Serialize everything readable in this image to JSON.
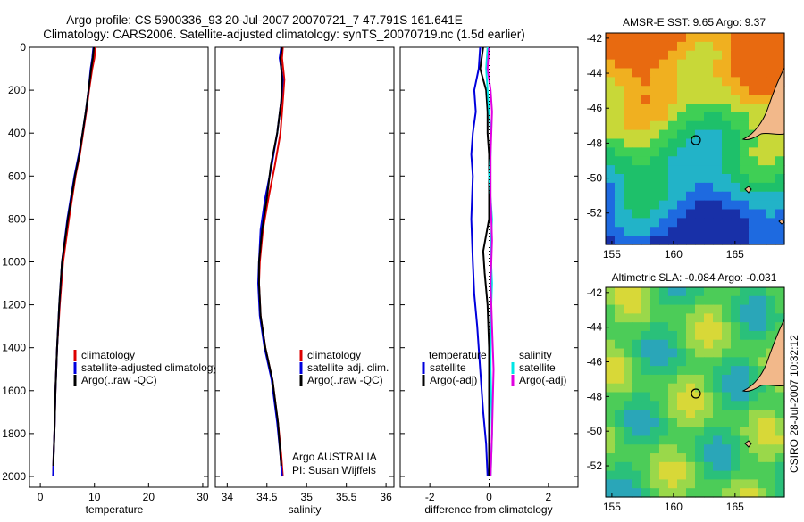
{
  "header": {
    "line1": "Argo profile: CS 5900336_93 20-Jul-2007 20070721_7 47.791S 161.641E",
    "line2": "Climatology: CARS2006. Satellite-adjusted climatology: synTS_20070719.nc (1.5d earlier)"
  },
  "side_stamp": "CSIRO 28-Jul-2007 10:32:12",
  "colors": {
    "red": "#dd0000",
    "blue": "#0000dd",
    "black": "#000000",
    "cyan": "#00e5e5",
    "magenta": "#e000e0"
  },
  "chart_data": [
    {
      "id": "temperature",
      "type": "line",
      "xlabel": "temperature",
      "ylabel": "",
      "xlim": [
        -2,
        31
      ],
      "ylim": [
        2050,
        0
      ],
      "xticks": [
        "0",
        "10",
        "20",
        "30"
      ],
      "xtick_values": [
        0,
        10,
        20,
        30
      ],
      "yticks": [
        "0",
        "200",
        "400",
        "600",
        "800",
        "1000",
        "1200",
        "1400",
        "1600",
        "1800",
        "2000"
      ],
      "ytick_values": [
        0,
        200,
        400,
        600,
        800,
        1000,
        1200,
        1400,
        1600,
        1800,
        2000
      ],
      "legend": [
        "climatology",
        "satellite-adjusted climatology",
        "Argo(..raw -QC)"
      ],
      "series": [
        {
          "name": "climatology",
          "color": "red",
          "x": [
            10.2,
            10.0,
            9.6,
            9.0,
            8.5,
            7.9,
            7.3,
            6.5,
            5.3,
            4.2,
            3.6,
            3.1,
            2.8,
            2.6,
            2.45,
            2.35
          ],
          "y": [
            0,
            50,
            100,
            200,
            300,
            400,
            500,
            600,
            800,
            1000,
            1200,
            1400,
            1600,
            1800,
            1900,
            2000
          ]
        },
        {
          "name": "satellite-adjusted climatology",
          "color": "blue",
          "x": [
            9.8,
            9.6,
            9.3,
            8.9,
            8.4,
            7.8,
            7.1,
            6.3,
            5.0,
            4.0,
            3.5,
            3.1,
            2.8,
            2.6,
            2.45,
            2.35
          ],
          "y": [
            0,
            50,
            100,
            200,
            300,
            400,
            500,
            600,
            800,
            1000,
            1200,
            1400,
            1600,
            1800,
            1900,
            2000
          ]
        },
        {
          "name": "Argo(..raw -QC)",
          "color": "black",
          "x": [
            9.9,
            9.7,
            9.4,
            8.9,
            8.4,
            7.8,
            7.2,
            6.4,
            5.1,
            4.0,
            3.5,
            3.1,
            2.8,
            2.6,
            2.4
          ],
          "y": [
            0,
            50,
            100,
            200,
            300,
            400,
            500,
            600,
            800,
            1000,
            1200,
            1400,
            1600,
            1800,
            1950
          ]
        }
      ]
    },
    {
      "id": "salinity",
      "type": "line",
      "xlabel": "salinity",
      "ylabel": "",
      "xlim": [
        33.85,
        36.1
      ],
      "ylim": [
        2050,
        0
      ],
      "xticks": [
        "34",
        "34.5",
        "35",
        "35.5",
        "36"
      ],
      "xtick_values": [
        34,
        34.5,
        35,
        35.5,
        36
      ],
      "legend": [
        "climatology",
        "satellite adj. clim.",
        "Argo(..raw -QC)"
      ],
      "annotation": [
        "Argo AUSTRALIA",
        "PI: Susan Wijffels"
      ],
      "series": [
        {
          "name": "climatology",
          "color": "red",
          "x": [
            34.7,
            34.69,
            34.72,
            34.7,
            34.67,
            34.6,
            34.52,
            34.45,
            34.41,
            34.4,
            34.42,
            34.48,
            34.57,
            34.64,
            34.68,
            34.7
          ],
          "y": [
            0,
            50,
            150,
            250,
            400,
            550,
            700,
            850,
            1000,
            1100,
            1250,
            1400,
            1550,
            1750,
            1900,
            2000
          ]
        },
        {
          "name": "satellite adj. clim.",
          "color": "blue",
          "x": [
            34.68,
            34.66,
            34.7,
            34.68,
            34.63,
            34.56,
            34.48,
            34.42,
            34.4,
            34.39,
            34.41,
            34.47,
            34.56,
            34.63,
            34.67,
            34.69
          ],
          "y": [
            0,
            50,
            150,
            250,
            400,
            550,
            700,
            850,
            1000,
            1100,
            1250,
            1400,
            1550,
            1750,
            1900,
            2000
          ]
        },
        {
          "name": "Argo(..raw -QC)",
          "color": "black",
          "x": [
            34.69,
            34.67,
            34.69,
            34.68,
            34.63,
            34.55,
            34.5,
            34.44,
            34.4,
            34.4,
            34.42,
            34.48,
            34.57,
            34.64,
            34.68
          ],
          "y": [
            0,
            50,
            150,
            250,
            400,
            550,
            700,
            850,
            1000,
            1100,
            1250,
            1400,
            1550,
            1750,
            1950
          ]
        }
      ]
    },
    {
      "id": "difference",
      "type": "line",
      "xlabel": "difference from climatology",
      "ylabel": "",
      "xlim": [
        -3.0,
        3.0
      ],
      "ylim": [
        2050,
        0
      ],
      "xticks": [
        "-2",
        "0",
        "2"
      ],
      "xtick_values": [
        -2,
        0,
        2
      ],
      "legend_temperature": {
        "title": "temperature",
        "items": [
          "satellite",
          "Argo(-adj)"
        ]
      },
      "legend_salinity": {
        "title": "salinity",
        "items": [
          "satellite",
          "Argo(-adj)"
        ]
      },
      "series": [
        {
          "name": "temperature satellite",
          "color": "blue",
          "x": [
            -0.3,
            -0.35,
            -0.5,
            -0.45,
            -0.55,
            -0.6,
            -0.55,
            -0.6,
            -0.55,
            -0.5,
            -0.4,
            -0.3,
            -0.2,
            -0.1,
            -0.05
          ],
          "y": [
            0,
            100,
            200,
            300,
            400,
            500,
            600,
            800,
            1000,
            1150,
            1300,
            1500,
            1700,
            1850,
            2000
          ]
        },
        {
          "name": "temperature Argo(-adj)",
          "color": "black",
          "x": [
            -0.2,
            -0.3,
            -0.1,
            -0.05,
            -0.05,
            0.0,
            0.0,
            0.0,
            -0.2,
            -0.15,
            -0.05,
            0.0,
            0.0,
            0.0
          ],
          "y": [
            0,
            100,
            200,
            300,
            400,
            500,
            600,
            800,
            950,
            1050,
            1200,
            1400,
            1700,
            2000
          ]
        },
        {
          "name": "salinity satellite",
          "color": "cyan",
          "x": [
            -0.05,
            -0.1,
            -0.05,
            0.0,
            0.05,
            0.05,
            0.0,
            0.1,
            0.05,
            0.1,
            0.05,
            0.05,
            0.1,
            0.05
          ],
          "y": [
            0,
            100,
            200,
            300,
            400,
            500,
            600,
            800,
            950,
            1100,
            1300,
            1500,
            1800,
            2000
          ]
        },
        {
          "name": "salinity Argo(-adj)",
          "color": "magenta",
          "x": [
            0.0,
            -0.05,
            0.05,
            0.1,
            0.05,
            0.05,
            0.1,
            0.05,
            0.1,
            0.15,
            0.1,
            0.05
          ],
          "y": [
            0,
            100,
            200,
            300,
            500,
            700,
            900,
            1100,
            1300,
            1500,
            1800,
            2000
          ]
        }
      ]
    }
  ],
  "maps": [
    {
      "title": "AMSR-E SST: 9.65 Argo: 9.37",
      "yticks": [
        "-42",
        "-44",
        "-46",
        "-48",
        "-50",
        "-52"
      ],
      "xticks": [
        "155",
        "160",
        "165"
      ],
      "marker_lon": 161.6,
      "marker_lat": -47.8,
      "kind": "sst"
    },
    {
      "title": "Altimetric SLA: -0.084 Argo: -0.031",
      "yticks": [
        "-42",
        "-44",
        "-46",
        "-48",
        "-50",
        "-52"
      ],
      "xticks": [
        "155",
        "160",
        "165"
      ],
      "marker_lon": 161.6,
      "marker_lat": -47.8,
      "kind": "sla"
    }
  ]
}
